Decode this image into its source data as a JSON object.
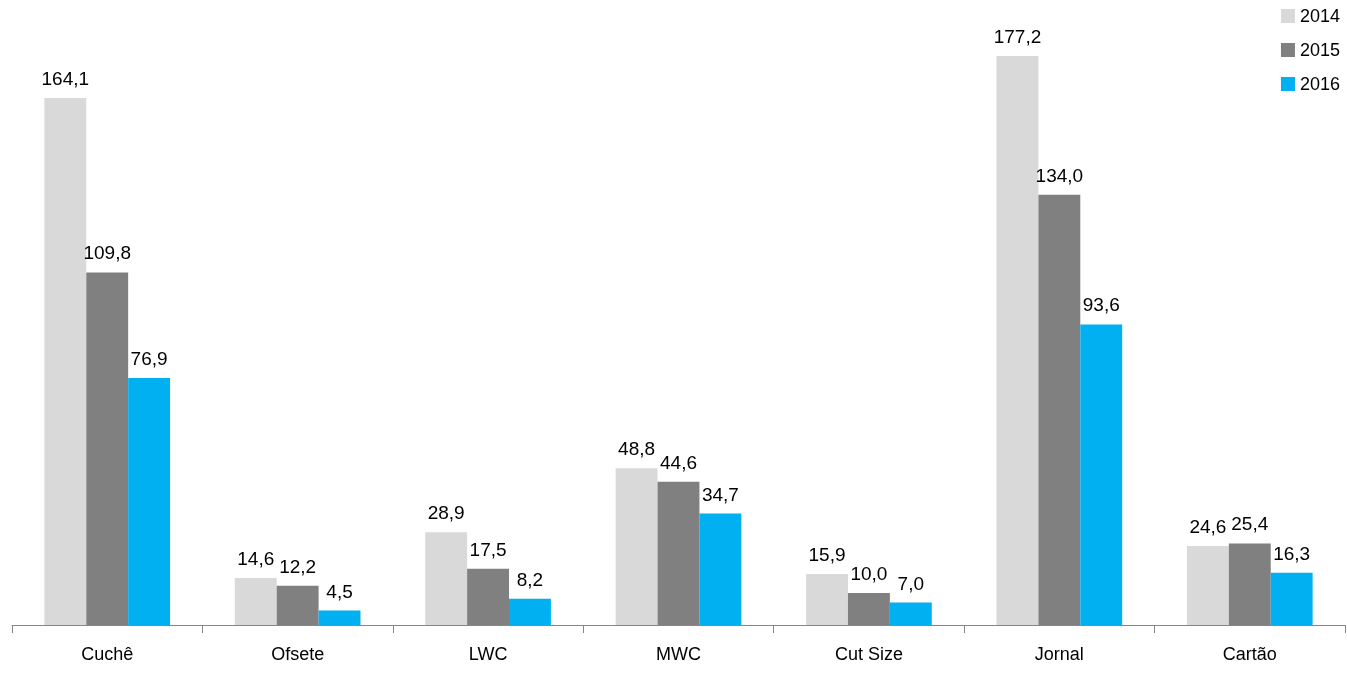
{
  "chart_data": {
    "type": "bar",
    "categories": [
      "Cuchê",
      "Ofsete",
      "LWC",
      "MWC",
      "Cut Size",
      "Jornal",
      "Cartão"
    ],
    "series": [
      {
        "name": "2014",
        "color": "#d9d9d9",
        "values": [
          164.1,
          14.6,
          28.9,
          48.8,
          15.9,
          177.2,
          24.6
        ],
        "value_labels": [
          "164,1",
          "14,6",
          "28,9",
          "48,8",
          "15,9",
          "177,2",
          "24,6"
        ]
      },
      {
        "name": "2015",
        "color": "#808080",
        "values": [
          109.8,
          12.2,
          17.5,
          44.6,
          10.0,
          134.0,
          25.4
        ],
        "value_labels": [
          "109,8",
          "12,2",
          "17,5",
          "44,6",
          "10,0",
          "134,0",
          "25,4"
        ]
      },
      {
        "name": "2016",
        "color": "#00b0f0",
        "values": [
          76.9,
          4.5,
          8.2,
          34.7,
          7.0,
          93.6,
          16.3
        ],
        "value_labels": [
          "76,9",
          "4,5",
          "8,2",
          "34,7",
          "7,0",
          "93,6",
          "16,3"
        ]
      }
    ],
    "legend": "top right"
  }
}
